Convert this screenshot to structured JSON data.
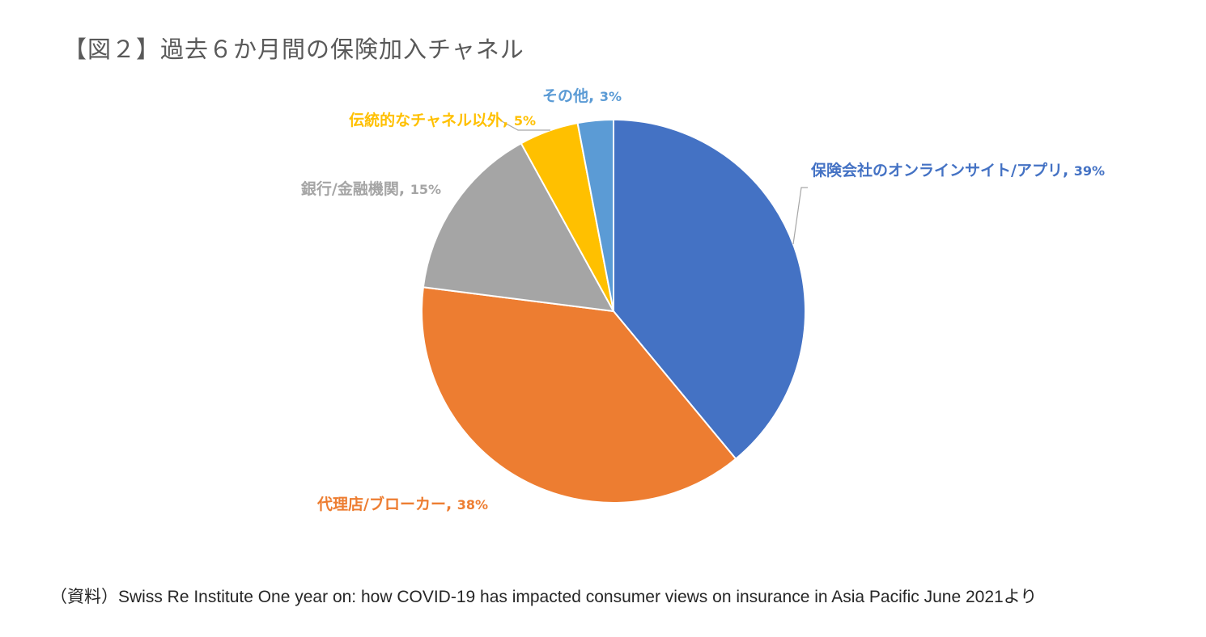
{
  "title": "【図２】過去６か月間の保険加入チャネル",
  "source": "（資料）Swiss Re Institute  One year on: how COVID-19 has impacted consumer views on insurance in Asia Pacific   June 2021より",
  "chart_data": {
    "type": "pie",
    "title": "",
    "legend": "none",
    "slices": [
      {
        "label": "保険会社のオンラインサイト/アプリ",
        "value": 39,
        "value_label": "39%",
        "color": "#4472C4"
      },
      {
        "label": "代理店/ブローカー",
        "value": 38,
        "value_label": "38%",
        "color": "#ED7D31"
      },
      {
        "label": "銀行/金融機関",
        "value": 15,
        "value_label": "15%",
        "color": "#A5A5A5"
      },
      {
        "label": "伝統的なチャネル以外",
        "value": 5,
        "value_label": "5%",
        "color": "#FFC000"
      },
      {
        "label": "その他",
        "value": 3,
        "value_label": "3%",
        "color": "#5B9BD5"
      }
    ]
  }
}
